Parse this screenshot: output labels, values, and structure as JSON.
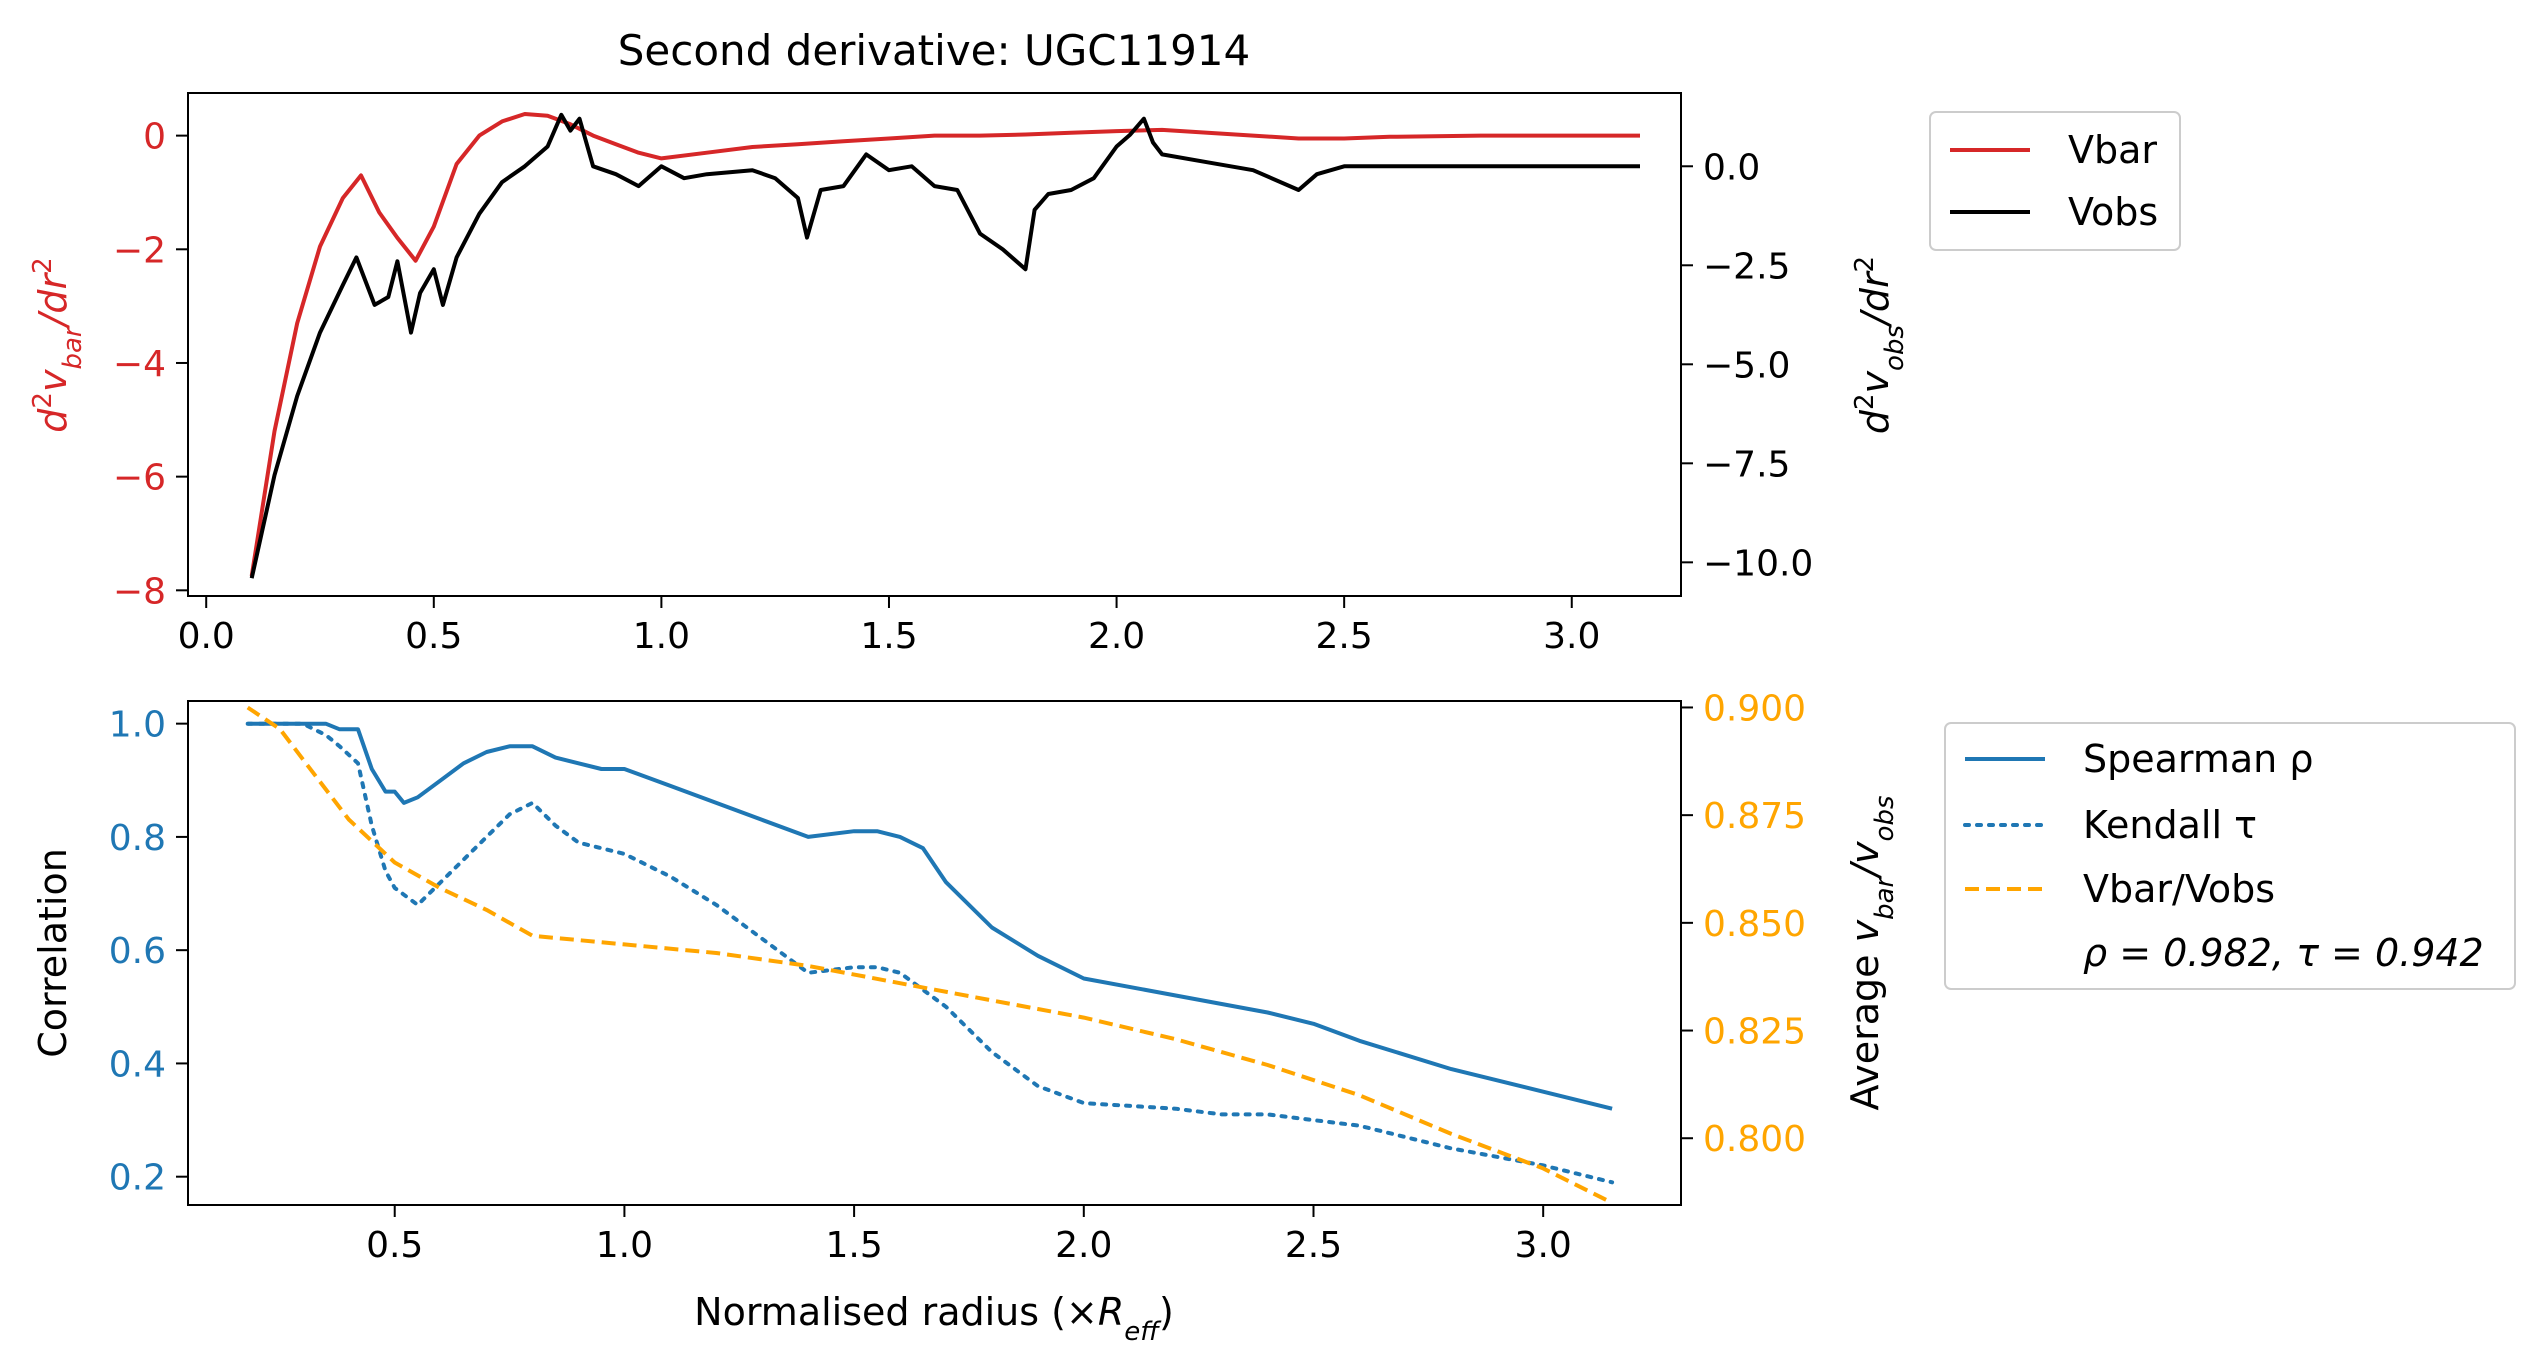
{
  "chart_data": [
    {
      "type": "line",
      "title": "Second derivative: UGC11914",
      "xlabel": "",
      "ylabel_left": "d²v_bar/dr²",
      "ylabel_right": "d²v_obs/dr²",
      "left_color": "#d62728",
      "right_color": "#000000",
      "xlim": [
        -0.04,
        3.24
      ],
      "ylim_left": [
        -8.1,
        0.75
      ],
      "ylim_right": [
        -10.85,
        1.85
      ],
      "xticks": [
        0.0,
        0.5,
        1.0,
        1.5,
        2.0,
        2.5,
        3.0
      ],
      "xtick_labels": [
        "0.0",
        "0.5",
        "1.0",
        "1.5",
        "2.0",
        "2.5",
        "3.0"
      ],
      "yticks_left": [
        0,
        -2,
        -4,
        -6,
        -8
      ],
      "ytick_labels_left": [
        "0",
        "−2",
        "−4",
        "−6",
        "−8"
      ],
      "yticks_right": [
        0.0,
        -2.5,
        -5.0,
        -7.5,
        -10.0
      ],
      "ytick_labels_right": [
        "0.0",
        "−2.5",
        "−5.0",
        "−7.5",
        "−10.0"
      ],
      "legend": {
        "placement": "outside-right-top",
        "entries": [
          "Vbar",
          "Vobs"
        ]
      },
      "series": [
        {
          "name": "Vbar",
          "axis": "left",
          "style": "solid",
          "color": "#d62728",
          "x": [
            0.1,
            0.15,
            0.2,
            0.25,
            0.3,
            0.34,
            0.38,
            0.42,
            0.46,
            0.5,
            0.55,
            0.6,
            0.65,
            0.7,
            0.75,
            0.8,
            0.85,
            0.9,
            0.95,
            1.0,
            1.1,
            1.2,
            1.3,
            1.4,
            1.5,
            1.6,
            1.7,
            1.8,
            1.9,
            2.0,
            2.1,
            2.2,
            2.3,
            2.4,
            2.5,
            2.6,
            2.8,
            3.0,
            3.15
          ],
          "y": [
            -7.75,
            -5.2,
            -3.3,
            -1.95,
            -1.1,
            -0.7,
            -1.35,
            -1.8,
            -2.2,
            -1.6,
            -0.5,
            0.0,
            0.25,
            0.38,
            0.35,
            0.2,
            0.0,
            -0.15,
            -0.3,
            -0.4,
            -0.3,
            -0.2,
            -0.15,
            -0.1,
            -0.05,
            0.0,
            0.0,
            0.02,
            0.05,
            0.08,
            0.1,
            0.05,
            0.0,
            -0.05,
            -0.05,
            -0.02,
            0.0,
            0.0,
            0.0
          ]
        },
        {
          "name": "Vobs",
          "axis": "right",
          "style": "solid",
          "color": "#000000",
          "x": [
            0.1,
            0.15,
            0.2,
            0.25,
            0.3,
            0.33,
            0.35,
            0.37,
            0.4,
            0.42,
            0.45,
            0.47,
            0.5,
            0.52,
            0.55,
            0.6,
            0.65,
            0.7,
            0.75,
            0.78,
            0.8,
            0.82,
            0.85,
            0.9,
            0.95,
            1.0,
            1.05,
            1.1,
            1.2,
            1.25,
            1.3,
            1.32,
            1.35,
            1.4,
            1.45,
            1.5,
            1.55,
            1.6,
            1.65,
            1.7,
            1.75,
            1.8,
            1.82,
            1.85,
            1.9,
            1.95,
            2.0,
            2.03,
            2.06,
            2.08,
            2.1,
            2.2,
            2.3,
            2.4,
            2.44,
            2.5,
            2.6,
            3.15
          ],
          "y": [
            -10.4,
            -7.8,
            -5.8,
            -4.2,
            -3.0,
            -2.3,
            -2.9,
            -3.5,
            -3.3,
            -2.4,
            -4.2,
            -3.2,
            -2.6,
            -3.5,
            -2.3,
            -1.2,
            -0.4,
            0.0,
            0.5,
            1.3,
            0.9,
            1.2,
            0.0,
            -0.2,
            -0.5,
            0.0,
            -0.3,
            -0.2,
            -0.1,
            -0.3,
            -0.8,
            -1.8,
            -0.6,
            -0.5,
            0.3,
            -0.1,
            0.0,
            -0.5,
            -0.6,
            -1.7,
            -2.1,
            -2.6,
            -1.1,
            -0.7,
            -0.6,
            -0.3,
            0.5,
            0.8,
            1.2,
            0.6,
            0.3,
            0.1,
            -0.1,
            -0.6,
            -0.2,
            0.0,
            0.0,
            0.0
          ]
        }
      ]
    },
    {
      "type": "line",
      "title": "",
      "xlabel": "Normalised radius (×R_eff)",
      "ylabel_left": "Correlation",
      "ylabel_right": "Average v_bar/v_obs",
      "left_color": "#1f77b4",
      "right_color": "#ffa500",
      "xlim": [
        0.05,
        3.3
      ],
      "ylim_left": [
        0.15,
        1.04
      ],
      "ylim_right": [
        0.7845,
        0.9015
      ],
      "xticks": [
        0.5,
        1.0,
        1.5,
        2.0,
        2.5,
        3.0
      ],
      "xtick_labels": [
        "0.5",
        "1.0",
        "1.5",
        "2.0",
        "2.5",
        "3.0"
      ],
      "yticks_left": [
        1.0,
        0.8,
        0.6,
        0.4,
        0.2
      ],
      "ytick_labels_left": [
        "1.0",
        "0.8",
        "0.6",
        "0.4",
        "0.2"
      ],
      "yticks_right": [
        0.9,
        0.875,
        0.85,
        0.825,
        0.8
      ],
      "ytick_labels_right": [
        "0.900",
        "0.875",
        "0.850",
        "0.825",
        "0.800"
      ],
      "legend": {
        "placement": "outside-right-top",
        "entries": [
          "Spearman ρ",
          "Kendall τ",
          "Vbar/Vobs"
        ],
        "annotation": "ρ = 0.982, τ = 0.942"
      },
      "series": [
        {
          "name": "Spearman ρ",
          "axis": "left",
          "style": "solid",
          "color": "#1f77b4",
          "x": [
            0.18,
            0.25,
            0.3,
            0.35,
            0.38,
            0.42,
            0.45,
            0.48,
            0.5,
            0.52,
            0.55,
            0.6,
            0.65,
            0.7,
            0.75,
            0.8,
            0.85,
            0.9,
            0.95,
            1.0,
            1.1,
            1.2,
            1.3,
            1.4,
            1.5,
            1.55,
            1.6,
            1.65,
            1.7,
            1.8,
            1.9,
            2.0,
            2.2,
            2.4,
            2.5,
            2.6,
            2.8,
            3.0,
            3.15
          ],
          "y": [
            1.0,
            1.0,
            1.0,
            1.0,
            0.99,
            0.99,
            0.92,
            0.88,
            0.88,
            0.86,
            0.87,
            0.9,
            0.93,
            0.95,
            0.96,
            0.96,
            0.94,
            0.93,
            0.92,
            0.92,
            0.89,
            0.86,
            0.83,
            0.8,
            0.81,
            0.81,
            0.8,
            0.78,
            0.72,
            0.64,
            0.59,
            0.55,
            0.52,
            0.49,
            0.47,
            0.44,
            0.39,
            0.35,
            0.32
          ]
        },
        {
          "name": "Kendall τ",
          "axis": "left",
          "style": "dotted",
          "color": "#1f77b4",
          "x": [
            0.18,
            0.25,
            0.3,
            0.35,
            0.38,
            0.42,
            0.45,
            0.48,
            0.5,
            0.55,
            0.6,
            0.65,
            0.7,
            0.75,
            0.8,
            0.85,
            0.9,
            0.95,
            1.0,
            1.1,
            1.2,
            1.3,
            1.4,
            1.5,
            1.55,
            1.6,
            1.65,
            1.7,
            1.8,
            1.9,
            2.0,
            2.2,
            2.3,
            2.4,
            2.5,
            2.6,
            2.8,
            3.0,
            3.15
          ],
          "y": [
            1.0,
            1.0,
            1.0,
            0.98,
            0.96,
            0.93,
            0.82,
            0.74,
            0.71,
            0.68,
            0.72,
            0.76,
            0.8,
            0.84,
            0.86,
            0.82,
            0.79,
            0.78,
            0.77,
            0.73,
            0.68,
            0.62,
            0.56,
            0.57,
            0.57,
            0.56,
            0.53,
            0.5,
            0.42,
            0.36,
            0.33,
            0.32,
            0.31,
            0.31,
            0.3,
            0.29,
            0.25,
            0.22,
            0.19
          ]
        },
        {
          "name": "Vbar/Vobs",
          "axis": "right",
          "style": "dashed",
          "color": "#ffa500",
          "x": [
            0.18,
            0.25,
            0.3,
            0.4,
            0.5,
            0.6,
            0.7,
            0.8,
            0.9,
            1.0,
            1.2,
            1.4,
            1.6,
            1.8,
            2.0,
            2.2,
            2.4,
            2.6,
            2.8,
            3.0,
            3.15
          ],
          "y": [
            0.9,
            0.895,
            0.888,
            0.874,
            0.864,
            0.858,
            0.853,
            0.847,
            0.846,
            0.845,
            0.843,
            0.84,
            0.836,
            0.832,
            0.828,
            0.823,
            0.817,
            0.81,
            0.801,
            0.793,
            0.785
          ]
        }
      ]
    }
  ]
}
